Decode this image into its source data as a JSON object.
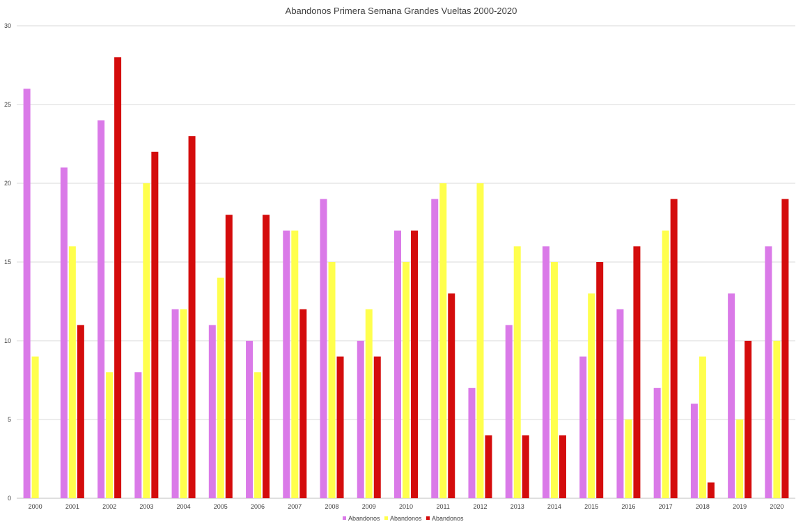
{
  "chart_data": {
    "type": "bar",
    "title": "Abandonos Primera Semana Grandes Vueltas 2000-2020",
    "xlabel": "",
    "ylabel": "",
    "ylim": [
      0,
      30
    ],
    "yticks": [
      0,
      5,
      10,
      15,
      20,
      25,
      30
    ],
    "grid": true,
    "legend_position": "bottom",
    "categories": [
      "2000",
      "2001",
      "2002",
      "2003",
      "2004",
      "2005",
      "2006",
      "2007",
      "2008",
      "2009",
      "2010",
      "2011",
      "2012",
      "2013",
      "2014",
      "2015",
      "2016",
      "2017",
      "2018",
      "2019",
      "2020"
    ],
    "series": [
      {
        "name": "Abandonos",
        "color": "#da7ae8",
        "values": [
          26,
          21,
          24,
          8,
          12,
          11,
          10,
          17,
          19,
          10,
          17,
          19,
          7,
          11,
          16,
          9,
          12,
          7,
          6,
          13,
          16
        ]
      },
      {
        "name": "Abandonos",
        "color": "#ffff4d",
        "values": [
          9,
          16,
          8,
          20,
          12,
          14,
          8,
          17,
          15,
          12,
          15,
          20,
          20,
          16,
          15,
          13,
          5,
          17,
          9,
          5,
          10
        ]
      },
      {
        "name": "Abandonos",
        "color": "#d40c0c",
        "values": [
          0,
          11,
          28,
          22,
          23,
          18,
          18,
          12,
          9,
          9,
          17,
          13,
          4,
          4,
          4,
          15,
          16,
          19,
          1,
          10,
          19
        ]
      }
    ]
  }
}
